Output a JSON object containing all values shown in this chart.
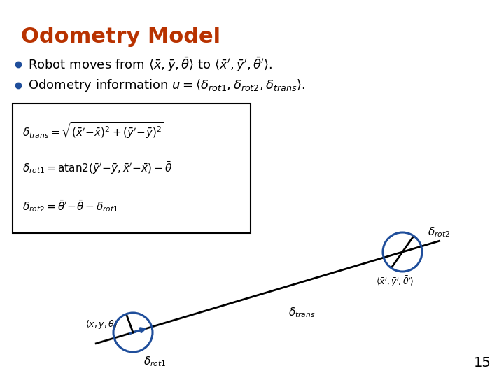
{
  "title": "Odometry Model",
  "title_color": "#B83200",
  "title_fontsize": 22,
  "background_color": "#FFFFFF",
  "bullet_color": "#1F4E9B",
  "page_number": "15",
  "circle_color": "#1F4E9B",
  "eq_fontsize": 11,
  "bullet_fontsize": 13
}
